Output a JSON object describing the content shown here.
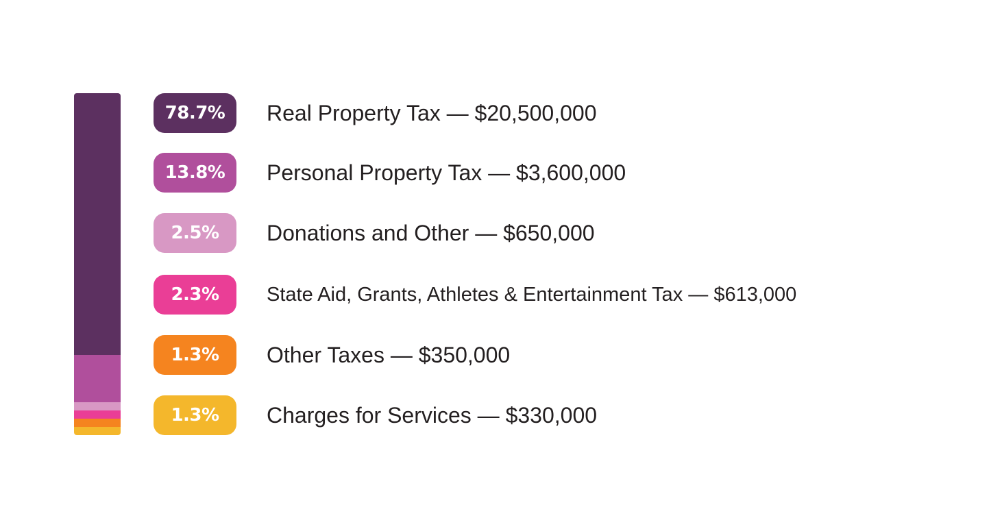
{
  "chart_data": {
    "type": "bar",
    "stacked": true,
    "orientation": "vertical",
    "categories": [
      "Real Property Tax",
      "Personal Property Tax",
      "Donations and Other",
      "State Aid, Grants, Athletes & Entertainment Tax",
      "Other Taxes",
      "Charges for Services"
    ],
    "percent_labels": [
      "78.7%",
      "13.8%",
      "2.5%",
      "2.3%",
      "1.3%",
      "1.3%"
    ],
    "percents": [
      78.7,
      13.8,
      2.5,
      2.3,
      1.3,
      1.3
    ],
    "amount_labels": [
      "$20,500,000",
      "$3,600,000",
      "$650,000",
      "$613,000",
      "$350,000",
      "$330,000"
    ],
    "values": [
      20500000,
      3600000,
      650000,
      613000,
      350000,
      330000
    ],
    "colors": [
      "#5c3060",
      "#b04f9c",
      "#d898c4",
      "#ea3e96",
      "#f5841f",
      "#f4b72c"
    ],
    "separator": "—",
    "legend_placement": "right",
    "grid": false
  }
}
